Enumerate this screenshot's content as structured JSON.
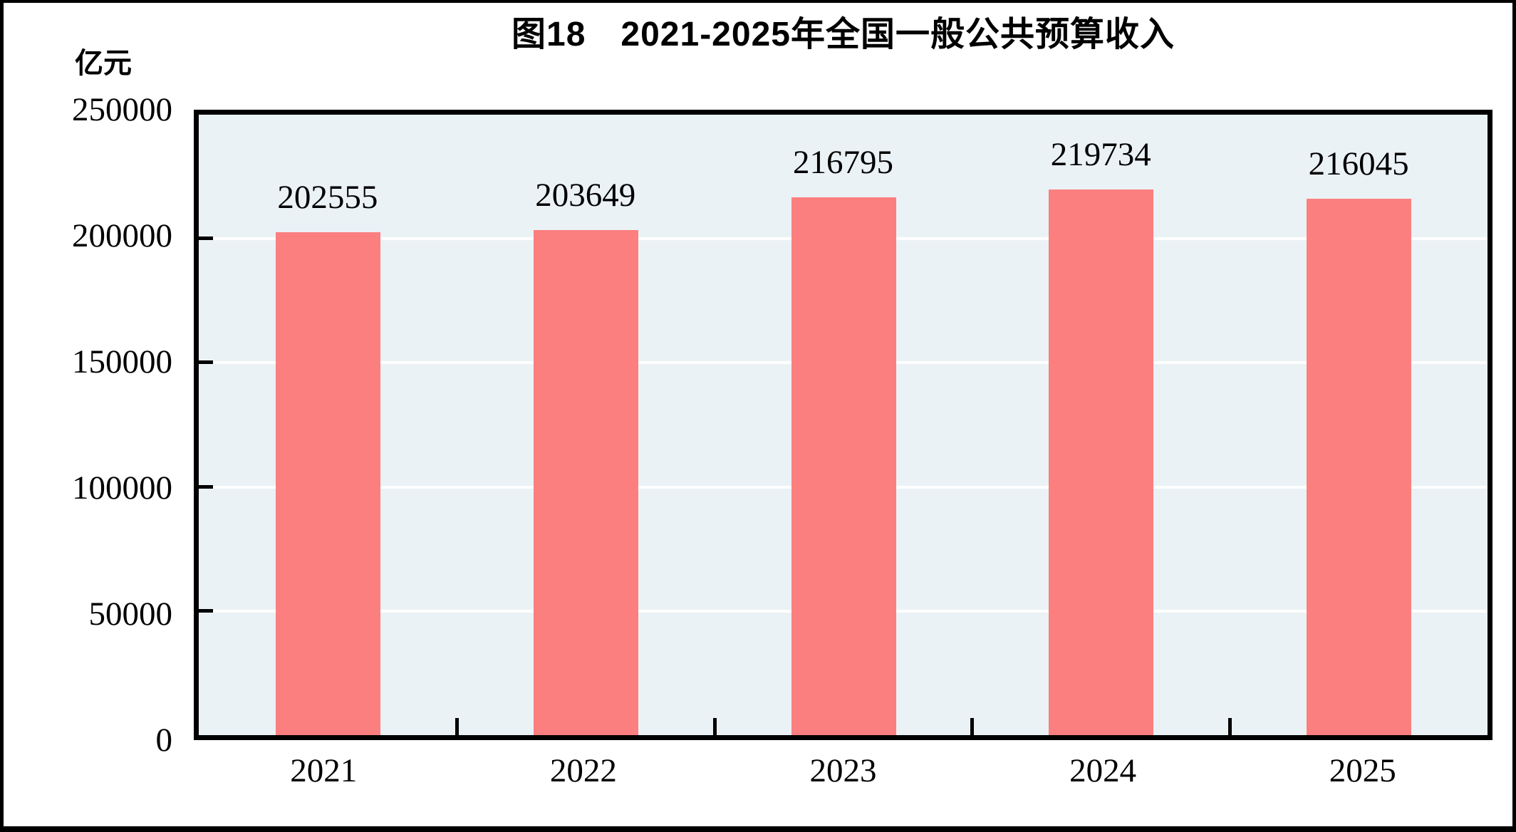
{
  "page": {
    "background": "#ffffff",
    "frame_color": "#000000"
  },
  "chart_data": {
    "type": "bar",
    "title": "图18　2021-2025年全国一般公共预算收入",
    "unit_label": "亿元",
    "categories": [
      "2021",
      "2022",
      "2023",
      "2024",
      "2025"
    ],
    "values": [
      202555,
      203649,
      216795,
      219734,
      216045
    ],
    "series_name": "全国一般公共预算收入",
    "xlabel": "",
    "ylabel": "亿元",
    "ylim": [
      0,
      250000
    ],
    "yticks": [
      0,
      50000,
      100000,
      150000,
      200000,
      250000
    ],
    "grid": "horizontal",
    "gridline_color": "#ffffff",
    "legend": "none",
    "value_labels_shown": true,
    "bar_color": "#FC7F7F",
    "plot_background": "#EBF2F6",
    "axis_color": "#000000",
    "text_color": "#000000"
  }
}
